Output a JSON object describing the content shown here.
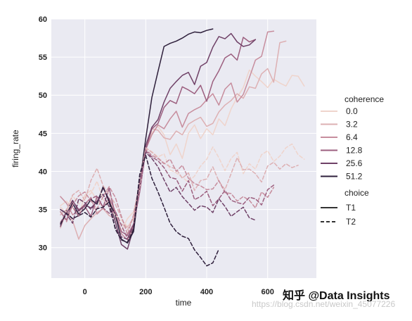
{
  "chart_data": {
    "type": "line",
    "title": "",
    "xlabel": "time",
    "ylabel": "firing_rate",
    "xlim": [
      -110,
      760
    ],
    "ylim": [
      26,
      60
    ],
    "xticks": [
      0,
      200,
      400,
      600
    ],
    "yticks": [
      30,
      35,
      40,
      45,
      50,
      55,
      60
    ],
    "grid": true,
    "legend_position": "right",
    "legend_titles": {
      "hue": "coherence",
      "style": "choice"
    },
    "coherence_levels": [
      {
        "label": "0.0",
        "color": "#efd4cc"
      },
      {
        "label": "3.2",
        "color": "#ddb0b3"
      },
      {
        "label": "6.4",
        "color": "#c78d9d"
      },
      {
        "label": "12.8",
        "color": "#9c5f7f"
      },
      {
        "label": "25.6",
        "color": "#6f4167"
      },
      {
        "label": "51.2",
        "color": "#2e1f3b"
      }
    ],
    "choice_levels": [
      {
        "label": "T1",
        "dash": "solid"
      },
      {
        "label": "T2",
        "dash": "dashed"
      }
    ],
    "series": [
      {
        "name": "0.0",
        "choice": "T1",
        "x": [
          -80,
          -60,
          -40,
          -20,
          0,
          20,
          40,
          60,
          80,
          100,
          120,
          140,
          160,
          180,
          200,
          220,
          240,
          260,
          280,
          300,
          320,
          340,
          360,
          380,
          400,
          420,
          440,
          460,
          480,
          500,
          520,
          540,
          560,
          580,
          600,
          620,
          640,
          660,
          680,
          700,
          720
        ],
        "y": [
          35.5,
          36.1,
          35.2,
          34.1,
          36.9,
          37.5,
          36.2,
          35.3,
          36.1,
          34.5,
          32.2,
          33.8,
          34.7,
          37.9,
          43.2,
          45.1,
          45.9,
          44.8,
          42.2,
          43.6,
          41.7,
          45.0,
          46.1,
          44.3,
          45.6,
          44.8,
          46.9,
          46.0,
          48.2,
          49.7,
          51.0,
          53.3,
          52.5,
          51.8,
          51.0,
          52.1,
          51.6,
          51.2,
          52.6,
          52.5,
          51.2
        ]
      },
      {
        "name": "3.2",
        "choice": "T1",
        "x": [
          -80,
          -60,
          -40,
          -20,
          0,
          20,
          40,
          60,
          80,
          100,
          120,
          140,
          160,
          180,
          200,
          220,
          240,
          260,
          280,
          300,
          320,
          340,
          360,
          380,
          400,
          420,
          440,
          460,
          480,
          500,
          520,
          540,
          560,
          580,
          600,
          620,
          640,
          660
        ],
        "y": [
          32.6,
          34.8,
          33.5,
          31.1,
          32.9,
          33.8,
          34.6,
          35.1,
          34.2,
          33.8,
          33.1,
          32.7,
          33.9,
          37.6,
          43.0,
          45.6,
          45.4,
          44.4,
          44.2,
          45.3,
          44.8,
          46.2,
          46.7,
          47.1,
          45.9,
          46.3,
          47.8,
          48.7,
          49.3,
          50.2,
          49.6,
          51.1,
          50.9,
          52.8,
          53.5,
          51.7,
          56.9,
          57.1
        ]
      },
      {
        "name": "6.4",
        "choice": "T1",
        "x": [
          -80,
          -60,
          -40,
          -20,
          0,
          20,
          40,
          60,
          80,
          100,
          120,
          140,
          160,
          180,
          200,
          220,
          240,
          260,
          280,
          300,
          320,
          340,
          360,
          380,
          400,
          420,
          440,
          460,
          480,
          500,
          520,
          540,
          560,
          580,
          600,
          620
        ],
        "y": [
          36.7,
          35.8,
          34.3,
          34.9,
          35.7,
          36.6,
          34.4,
          35.2,
          36.5,
          34.8,
          31.8,
          31.0,
          32.7,
          37.8,
          42.9,
          44.8,
          46.1,
          45.6,
          46.9,
          47.9,
          45.8,
          47.6,
          48.1,
          48.5,
          49.4,
          50.2,
          48.7,
          50.8,
          51.6,
          49.1,
          50.1,
          52.3,
          54.6,
          55.1,
          58.3,
          58.4
        ]
      },
      {
        "name": "12.8",
        "choice": "T1",
        "x": [
          -80,
          -60,
          -40,
          -20,
          0,
          20,
          40,
          60,
          80,
          100,
          120,
          140,
          160,
          180,
          200,
          220,
          240,
          260,
          280,
          300,
          320,
          340,
          360,
          380,
          400,
          420,
          440,
          460,
          480,
          500,
          520,
          540,
          560
        ],
        "y": [
          34.7,
          33.6,
          36.1,
          35.0,
          35.4,
          34.1,
          36.7,
          35.3,
          37.8,
          34.2,
          32.1,
          31.6,
          33.1,
          37.3,
          42.8,
          45.6,
          46.3,
          48.4,
          49.3,
          48.9,
          51.1,
          50.7,
          50.2,
          51.3,
          49.2,
          51.8,
          53.2,
          54.9,
          55.4,
          54.6,
          57.6,
          57.0,
          57.3
        ]
      },
      {
        "name": "25.6",
        "choice": "T1",
        "x": [
          -80,
          -60,
          -40,
          -20,
          0,
          20,
          40,
          60,
          80,
          100,
          120,
          140,
          160,
          180,
          200,
          220,
          240,
          260,
          280,
          300,
          320,
          340,
          360,
          380,
          400,
          420,
          440,
          460,
          480,
          500,
          520,
          540,
          560
        ],
        "y": [
          32.8,
          34.9,
          36.2,
          34.8,
          35.6,
          35.2,
          36.0,
          37.8,
          36.3,
          33.4,
          30.4,
          29.8,
          32.6,
          38.0,
          43.4,
          45.8,
          46.8,
          49.1,
          50.9,
          51.8,
          52.6,
          53.0,
          51.4,
          53.8,
          54.3,
          56.3,
          57.7,
          57.4,
          58.1,
          57.0,
          56.4,
          56.6,
          57.3
        ]
      },
      {
        "name": "51.2",
        "choice": "T1",
        "x": [
          -80,
          -60,
          -40,
          -20,
          0,
          20,
          40,
          60,
          80,
          100,
          120,
          140,
          160,
          180,
          200,
          220,
          240,
          260,
          280,
          300,
          320,
          340,
          360,
          380,
          400,
          420
        ],
        "y": [
          35.0,
          34.5,
          35.8,
          34.4,
          35.1,
          36.3,
          35.7,
          38.0,
          36.0,
          34.3,
          31.1,
          30.6,
          32.1,
          38.4,
          44.3,
          49.7,
          53.1,
          56.4,
          56.8,
          57.1,
          57.5,
          58.0,
          58.3,
          58.2,
          58.5,
          58.7
        ]
      },
      {
        "name": "0.0",
        "choice": "T2",
        "x": [
          -80,
          -60,
          -40,
          -20,
          0,
          20,
          40,
          60,
          80,
          100,
          120,
          140,
          160,
          180,
          200,
          220,
          240,
          260,
          280,
          300,
          320,
          340,
          360,
          380,
          400,
          420,
          440,
          460,
          480,
          500,
          520,
          540,
          560,
          580,
          600,
          620,
          640,
          660,
          680,
          700,
          720
        ],
        "y": [
          35.3,
          34.6,
          36.8,
          35.7,
          36.6,
          37.1,
          38.7,
          36.3,
          35.4,
          34.2,
          33.6,
          32.8,
          33.6,
          37.8,
          43.0,
          42.6,
          41.9,
          42.3,
          40.2,
          39.8,
          39.2,
          38.6,
          39.4,
          40.7,
          41.6,
          43.2,
          41.8,
          40.1,
          41.7,
          42.5,
          39.7,
          41.0,
          40.3,
          42.2,
          42.7,
          41.3,
          42.0,
          43.1,
          43.6,
          42.2,
          41.6
        ]
      },
      {
        "name": "3.2",
        "choice": "T2",
        "x": [
          -80,
          -60,
          -40,
          -20,
          0,
          20,
          40,
          60,
          80,
          100,
          120,
          140,
          160,
          180,
          200,
          220,
          240,
          260,
          280,
          300,
          320,
          340,
          360,
          380,
          400,
          420,
          440,
          460,
          480,
          500,
          520,
          540,
          560,
          580,
          600,
          620,
          640,
          660,
          680,
          700
        ],
        "y": [
          34.3,
          35.0,
          36.9,
          37.5,
          36.2,
          38.8,
          40.4,
          38.1,
          37.0,
          35.7,
          33.9,
          32.3,
          34.0,
          38.8,
          43.1,
          42.5,
          41.8,
          41.1,
          40.6,
          40.3,
          39.1,
          39.8,
          37.5,
          38.8,
          39.0,
          40.6,
          38.7,
          37.6,
          39.7,
          41.8,
          40.2,
          40.3,
          39.7,
          38.6,
          40.7,
          41.2,
          40.3,
          41.0,
          40.5,
          40.8
        ]
      },
      {
        "name": "6.4",
        "choice": "T2",
        "x": [
          -80,
          -60,
          -40,
          -20,
          0,
          20,
          40,
          60,
          80,
          100,
          120,
          140,
          160,
          180,
          200,
          220,
          240,
          260,
          280,
          300,
          320,
          340,
          360,
          380,
          400,
          420,
          440,
          460,
          480,
          500,
          520,
          540,
          560,
          580,
          600,
          620
        ],
        "y": [
          34.7,
          33.4,
          35.6,
          36.8,
          37.3,
          36.1,
          35.1,
          36.7,
          38.0,
          36.6,
          34.1,
          31.7,
          34.3,
          38.6,
          42.9,
          42.1,
          41.7,
          41.0,
          41.6,
          40.0,
          40.8,
          39.1,
          38.4,
          38.1,
          37.6,
          37.7,
          38.8,
          37.2,
          37.1,
          36.1,
          36.7,
          36.2,
          35.2,
          37.3,
          36.6,
          37.9
        ]
      },
      {
        "name": "12.8",
        "choice": "T2",
        "x": [
          -80,
          -60,
          -40,
          -20,
          0,
          20,
          40,
          60,
          80,
          100,
          120,
          140,
          160,
          180,
          200,
          220,
          240,
          260,
          280,
          300,
          320,
          340,
          360,
          380,
          400,
          420,
          440,
          460,
          480,
          500,
          520,
          540,
          560,
          580,
          600,
          620
        ],
        "y": [
          33.3,
          34.6,
          35.4,
          34.1,
          35.7,
          36.4,
          36.8,
          35.2,
          34.5,
          34.8,
          32.9,
          31.2,
          33.0,
          37.4,
          42.7,
          41.9,
          41.4,
          40.5,
          39.2,
          39.0,
          37.4,
          38.8,
          36.3,
          36.7,
          37.4,
          35.5,
          36.4,
          37.5,
          36.2,
          35.9,
          35.7,
          36.6,
          36.4,
          35.6,
          37.6,
          38.2
        ]
      },
      {
        "name": "25.6",
        "choice": "T2",
        "x": [
          -80,
          -60,
          -40,
          -20,
          0,
          20,
          40,
          60,
          80,
          100,
          120,
          140,
          160,
          180,
          200,
          220,
          240,
          260,
          280,
          300,
          320,
          340,
          360,
          380,
          400,
          420,
          440,
          460,
          480,
          500,
          520,
          540,
          560
        ],
        "y": [
          35.0,
          34.4,
          33.2,
          36.4,
          35.9,
          35.0,
          36.1,
          37.0,
          35.3,
          32.6,
          31.4,
          31.1,
          32.9,
          38.7,
          42.5,
          41.7,
          40.6,
          38.9,
          37.3,
          37.9,
          36.7,
          35.8,
          34.9,
          35.5,
          35.3,
          34.6,
          36.4,
          35.4,
          34.1,
          34.7,
          35.3,
          33.9,
          33.6
        ]
      },
      {
        "name": "51.2",
        "choice": "T2",
        "x": [
          -80,
          -60,
          -40,
          -20,
          0,
          20,
          40,
          60,
          80,
          100,
          120,
          140,
          160,
          180,
          200,
          220,
          240,
          260,
          280,
          300,
          320,
          340,
          360,
          380,
          400,
          420,
          440
        ],
        "y": [
          33.1,
          34.5,
          33.8,
          34.2,
          34.6,
          34.0,
          35.1,
          35.3,
          36.0,
          32.4,
          31.0,
          30.7,
          32.4,
          39.6,
          42.1,
          39.1,
          37.3,
          35.3,
          33.2,
          32.1,
          31.5,
          31.2,
          29.7,
          28.7,
          27.6,
          28.0,
          29.8
        ]
      }
    ]
  },
  "watermark": {
    "main": "知乎 @Data Insights",
    "url": "https://blog.csdn.net/weixin_45077226"
  }
}
